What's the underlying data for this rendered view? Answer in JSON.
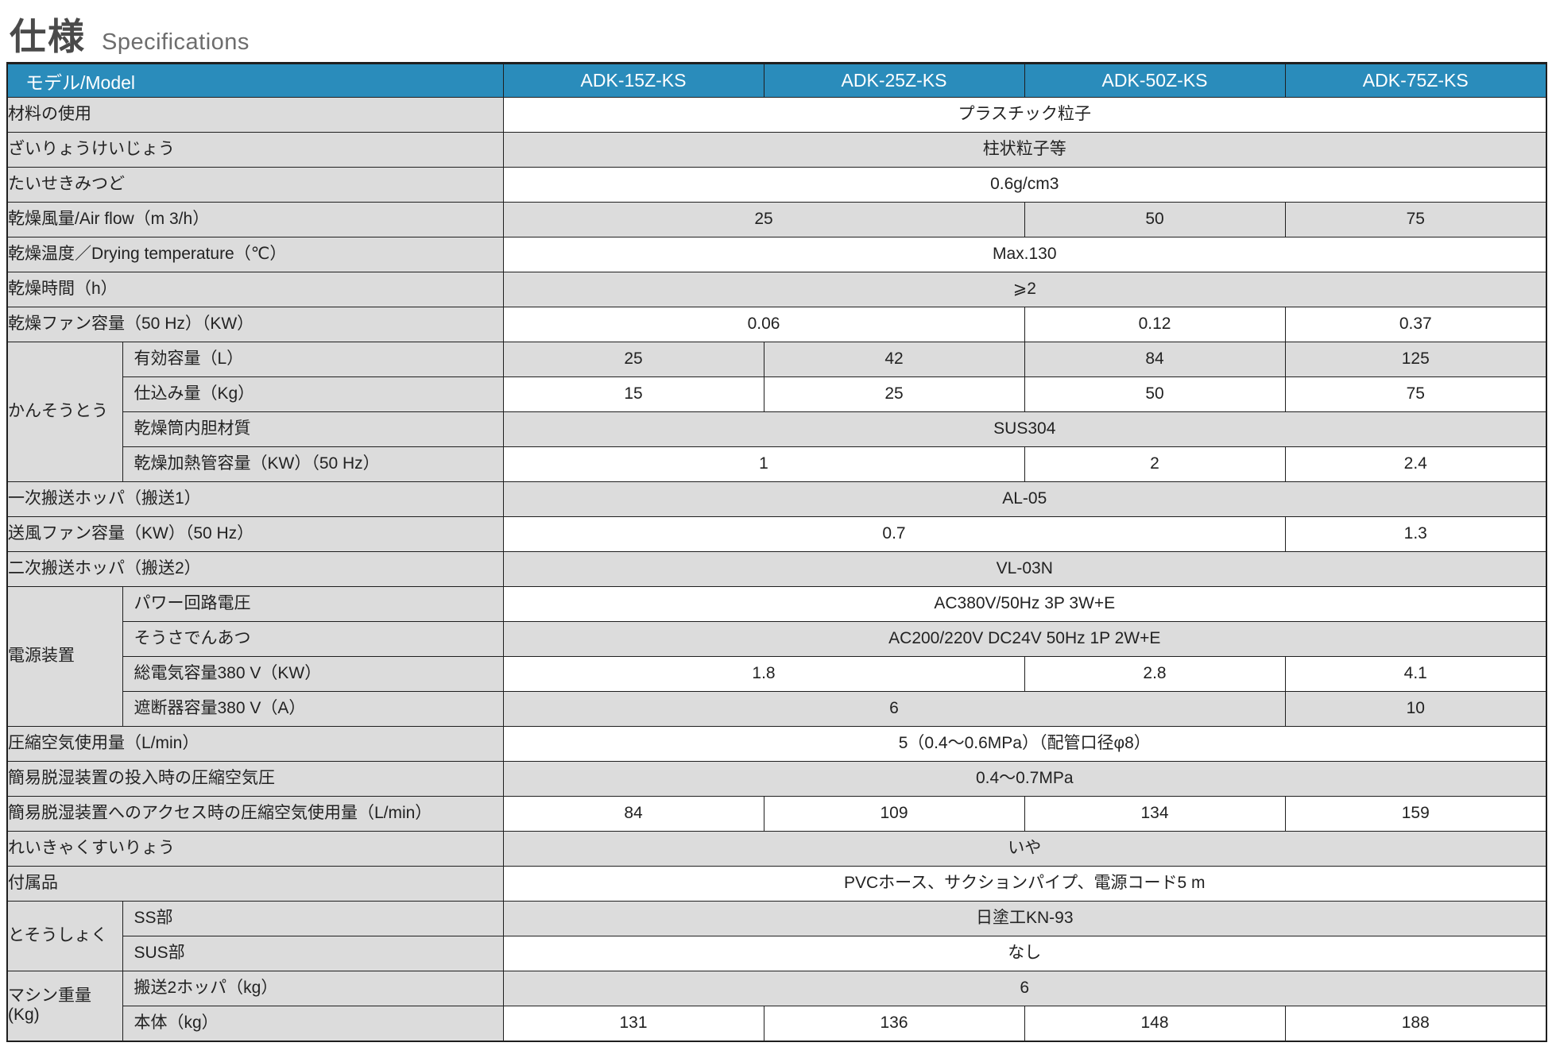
{
  "title": {
    "jp": "仕様",
    "en": "Specifications"
  },
  "colors": {
    "header_bg": "#2a8cbb",
    "header_text": "#ffffff",
    "row_gray": "#dcdcdc",
    "row_white": "#ffffff",
    "border": "#1f1f1f"
  },
  "table": {
    "header": {
      "label": "モデル/Model",
      "models": [
        "ADK-15Z-KS",
        "ADK-25Z-KS",
        "ADK-50Z-KS",
        "ADK-75Z-KS"
      ]
    },
    "rows": [
      {
        "label": "材料の使用",
        "cells": [
          {
            "text": "プラスチック粒子",
            "span": 4
          }
        ]
      },
      {
        "label": "ざいりょうけいじょう",
        "cells": [
          {
            "text": "柱状粒子等",
            "span": 4
          }
        ]
      },
      {
        "label": "たいせきみつど",
        "cells": [
          {
            "text": "0.6g/cm3",
            "span": 4
          }
        ]
      },
      {
        "label": "乾燥風量/Air flow（m 3/h）",
        "cells": [
          {
            "text": "25",
            "span": 2
          },
          {
            "text": "50",
            "span": 1
          },
          {
            "text": "75",
            "span": 1
          }
        ]
      },
      {
        "label": "乾燥温度／Drying temperature（℃）",
        "cells": [
          {
            "text": "Max.130",
            "span": 4
          }
        ]
      },
      {
        "label": "乾燥時間（h）",
        "cells": [
          {
            "text": "⩾2",
            "span": 4
          }
        ]
      },
      {
        "label": "乾燥ファン容量（50 Hz）（KW）",
        "cells": [
          {
            "text": "0.06",
            "span": 2
          },
          {
            "text": "0.12",
            "span": 1
          },
          {
            "text": "0.37",
            "span": 1
          }
        ]
      },
      {
        "group": "かんそうとう",
        "group_rowspan": 4,
        "label": "有効容量（L）",
        "cells": [
          {
            "text": "25",
            "span": 1
          },
          {
            "text": "42",
            "span": 1
          },
          {
            "text": "84",
            "span": 1
          },
          {
            "text": "125",
            "span": 1
          }
        ]
      },
      {
        "in_group": true,
        "label": "仕込み量（Kg）",
        "cells": [
          {
            "text": "15",
            "span": 1
          },
          {
            "text": "25",
            "span": 1
          },
          {
            "text": "50",
            "span": 1
          },
          {
            "text": "75",
            "span": 1
          }
        ]
      },
      {
        "in_group": true,
        "label": "乾燥筒内胆材質",
        "cells": [
          {
            "text": "SUS304",
            "span": 4
          }
        ]
      },
      {
        "in_group": true,
        "label": "乾燥加熱管容量（KW）（50 Hz）",
        "cells": [
          {
            "text": "1",
            "span": 2
          },
          {
            "text": "2",
            "span": 1
          },
          {
            "text": "2.4",
            "span": 1
          }
        ]
      },
      {
        "label": "一次搬送ホッパ（搬送1）",
        "cells": [
          {
            "text": "AL-05",
            "span": 4
          }
        ]
      },
      {
        "label": "送風ファン容量（KW）（50 Hz）",
        "cells": [
          {
            "text": "0.7",
            "span": 3
          },
          {
            "text": "1.3",
            "span": 1
          }
        ]
      },
      {
        "label": "二次搬送ホッパ（搬送2）",
        "cells": [
          {
            "text": "VL-03N",
            "span": 4
          }
        ]
      },
      {
        "group": "電源装置",
        "group_rowspan": 4,
        "label": "パワー回路電圧",
        "cells": [
          {
            "text": "AC380V/50Hz 3P 3W+E",
            "span": 4
          }
        ]
      },
      {
        "in_group": true,
        "label": "そうさでんあつ",
        "cells": [
          {
            "text": "AC200/220V DC24V 50Hz 1P 2W+E",
            "span": 4
          }
        ]
      },
      {
        "in_group": true,
        "label": "総電気容量380 V（KW）",
        "cells": [
          {
            "text": "1.8",
            "span": 2
          },
          {
            "text": "2.8",
            "span": 1
          },
          {
            "text": "4.1",
            "span": 1
          }
        ]
      },
      {
        "in_group": true,
        "label": "遮断器容量380 V（A）",
        "cells": [
          {
            "text": "6",
            "span": 3
          },
          {
            "text": "10",
            "span": 1
          }
        ]
      },
      {
        "label": "圧縮空気使用量（L/min）",
        "cells": [
          {
            "text": "5（0.4〜0.6MPa）（配管口径φ8）",
            "span": 4
          }
        ]
      },
      {
        "label": "簡易脱湿装置の投入時の圧縮空気圧",
        "cells": [
          {
            "text": "0.4〜0.7MPa",
            "span": 4
          }
        ]
      },
      {
        "label": "簡易脱湿装置へのアクセス時の圧縮空気使用量（L/min）",
        "cells": [
          {
            "text": "84",
            "span": 1
          },
          {
            "text": "109",
            "span": 1
          },
          {
            "text": "134",
            "span": 1
          },
          {
            "text": "159",
            "span": 1
          }
        ]
      },
      {
        "label": "れいきゃくすいりょう",
        "cells": [
          {
            "text": "いや",
            "span": 4
          }
        ]
      },
      {
        "label": "付属品",
        "cells": [
          {
            "text": "PVCホース、サクションパイプ、電源コード5 m",
            "span": 4
          }
        ]
      },
      {
        "group": "とそうしょく",
        "group_rowspan": 2,
        "label": "SS部",
        "cells": [
          {
            "text": "日塗工KN-93",
            "span": 4
          }
        ]
      },
      {
        "in_group": true,
        "label": "SUS部",
        "cells": [
          {
            "text": "なし",
            "span": 4
          }
        ]
      },
      {
        "group": "マシン重量 (Kg)",
        "group_rowspan": 2,
        "label": "搬送2ホッパ（kg）",
        "cells": [
          {
            "text": "6",
            "span": 4
          }
        ]
      },
      {
        "in_group": true,
        "label": "本体（kg）",
        "cells": [
          {
            "text": "131",
            "span": 1
          },
          {
            "text": "136",
            "span": 1
          },
          {
            "text": "148",
            "span": 1
          },
          {
            "text": "188",
            "span": 1
          }
        ]
      }
    ]
  }
}
